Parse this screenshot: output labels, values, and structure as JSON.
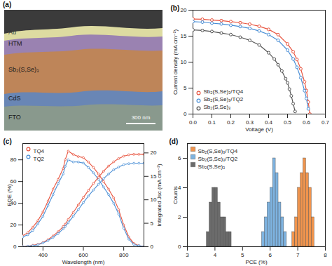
{
  "image_panel": {
    "title": "(a)",
    "layers": [
      "Au",
      "HTM",
      "Sb₂(S,Se)₃",
      "CdS",
      "FTO"
    ],
    "scale_bar": "300 nm"
  },
  "chart_data": [
    {
      "type": "line",
      "title": "(b)",
      "x_label": "Voltage (V)",
      "y_label": "Current density (mA cm⁻²)",
      "xlim": [
        0,
        0.7
      ],
      "xticks": [
        {
          "value": 0,
          "label": "0.0"
        },
        0.1,
        0.2,
        0.3,
        0.4,
        0.5,
        0.6,
        0.7
      ],
      "ylim": [
        0,
        20
      ],
      "yticks": [
        0,
        5,
        10,
        15,
        20
      ],
      "legend": "lower left",
      "marker": "circle",
      "series": [
        {
          "name": "Sb₂(S,Se)₃/TQ4",
          "color": "#e8543f",
          "x": [
            0,
            0.05,
            0.1,
            0.15,
            0.2,
            0.25,
            0.3,
            0.35,
            0.4,
            0.45,
            0.5,
            0.53,
            0.55,
            0.57,
            0.59,
            0.6,
            0.61,
            0.618
          ],
          "values": [
            18.3,
            18.25,
            18.1,
            18.0,
            17.8,
            17.6,
            17.3,
            16.9,
            16.3,
            15.3,
            13.5,
            12.0,
            10.5,
            8.7,
            6.2,
            4.5,
            2.3,
            0
          ]
        },
        {
          "name": "Sb₂(S,Se)₃/TQ2",
          "color": "#4a8fd6",
          "x": [
            0,
            0.05,
            0.1,
            0.15,
            0.2,
            0.25,
            0.3,
            0.35,
            0.4,
            0.45,
            0.5,
            0.53,
            0.55,
            0.57,
            0.59,
            0.6,
            0.61
          ],
          "values": [
            17.8,
            17.7,
            17.5,
            17.35,
            17.1,
            16.85,
            16.5,
            16.0,
            15.3,
            14.2,
            12.3,
            10.6,
            9.0,
            7.0,
            4.5,
            3.0,
            1.0
          ]
        },
        {
          "name": "Sb₂(S,Se)₃",
          "color": "#555555",
          "x": [
            0,
            0.05,
            0.1,
            0.15,
            0.2,
            0.25,
            0.3,
            0.35,
            0.4,
            0.43,
            0.45,
            0.47,
            0.49,
            0.5,
            0.51,
            0.52,
            0.53,
            0.54
          ],
          "values": [
            16.2,
            16.1,
            15.9,
            15.6,
            15.3,
            14.8,
            14.2,
            13.3,
            11.8,
            10.6,
            9.5,
            8.3,
            6.8,
            6.0,
            4.8,
            3.5,
            2.0,
            0.5
          ]
        }
      ]
    },
    {
      "type": "line",
      "title": "(c)",
      "x_label": "Wavelength (nm)",
      "y_label": "EQE (%)",
      "y2_label": "Integrated Jsc (mA cm⁻²)",
      "xlim": [
        300,
        900
      ],
      "xticks": [
        400,
        600,
        800
      ],
      "ylim": [
        0,
        95
      ],
      "yticks": [
        0,
        20,
        40,
        60,
        80
      ],
      "y2lim": [
        0,
        22
      ],
      "y2ticks": [
        0,
        5,
        10,
        15,
        20
      ],
      "legend": "upper left",
      "marker": "circle",
      "series": [
        {
          "name": "TQ4",
          "color": "#e8543f",
          "axis": "y",
          "x": [
            300,
            325,
            350,
            375,
            400,
            425,
            450,
            475,
            500,
            510,
            525,
            550,
            575,
            600,
            625,
            650,
            675,
            700,
            725,
            750,
            775,
            800,
            825,
            850,
            875,
            900
          ],
          "values": [
            10,
            13,
            18,
            24,
            32,
            42,
            53,
            62,
            72,
            80,
            88,
            85,
            83,
            82,
            78,
            73,
            67,
            60,
            53,
            45,
            34,
            20,
            9,
            3,
            1,
            0
          ]
        },
        {
          "name": "TQ2",
          "color": "#4a8fd6",
          "axis": "y",
          "x": [
            300,
            325,
            350,
            375,
            400,
            425,
            450,
            475,
            500,
            510,
            525,
            550,
            575,
            600,
            625,
            650,
            675,
            700,
            725,
            750,
            775,
            800,
            825,
            850,
            875,
            900
          ],
          "values": [
            9,
            11,
            15,
            21,
            28,
            38,
            48,
            58,
            67,
            74,
            80,
            78,
            78,
            77,
            73,
            68,
            62,
            55,
            48,
            40,
            30,
            17,
            7,
            2,
            1,
            0
          ]
        },
        {
          "name": "TQ4",
          "color": "#e8543f",
          "axis": "y2",
          "x": [
            300,
            325,
            350,
            375,
            400,
            425,
            450,
            475,
            500,
            510,
            525,
            550,
            575,
            600,
            625,
            650,
            675,
            700,
            725,
            750,
            775,
            800,
            825,
            850,
            875,
            900
          ],
          "values": [
            0,
            0.1,
            0.3,
            0.5,
            0.9,
            1.5,
            2.3,
            3.2,
            4.3,
            4.8,
            5.8,
            7.3,
            8.9,
            10.5,
            12.0,
            13.5,
            14.8,
            16.1,
            17.2,
            18.1,
            18.8,
            19.3,
            19.6,
            19.7,
            19.7,
            19.7
          ]
        },
        {
          "name": "TQ2",
          "color": "#4a8fd6",
          "axis": "y2",
          "x": [
            300,
            325,
            350,
            375,
            400,
            425,
            450,
            475,
            500,
            510,
            525,
            550,
            575,
            600,
            625,
            650,
            675,
            700,
            725,
            750,
            775,
            800,
            825,
            850,
            875,
            900
          ],
          "values": [
            0,
            0.1,
            0.2,
            0.4,
            0.8,
            1.3,
            2.0,
            2.8,
            3.8,
            4.3,
            5.1,
            6.5,
            7.9,
            9.4,
            10.8,
            12.1,
            13.3,
            14.5,
            15.5,
            16.4,
            17.0,
            17.5,
            17.7,
            17.8,
            17.8,
            17.8
          ]
        }
      ]
    },
    {
      "type": "histogram",
      "title": "(d)",
      "x_label": "PCE (%)",
      "y_label": "Counts",
      "xlim": [
        3,
        8
      ],
      "xticks": [
        3,
        4,
        5,
        6,
        7,
        8
      ],
      "ylim": [
        0,
        7
      ],
      "yticks": [
        0,
        2,
        4,
        6
      ],
      "legend": "upper left",
      "series": [
        {
          "name": "Sb₂(S,Se)₃/TQ4",
          "color": "#f0944d",
          "bins": [
            6.8,
            6.9,
            7.0,
            7.1,
            7.2,
            7.3,
            7.4,
            7.5,
            7.6
          ],
          "counts": [
            1,
            2,
            4,
            5,
            6,
            5,
            4,
            2
          ]
        },
        {
          "name": "Sb₂(S,Se)₃/TQ2",
          "color": "#7eb3e0",
          "bins": [
            5.7,
            5.8,
            5.9,
            6.0,
            6.1,
            6.2,
            6.3,
            6.4,
            6.5,
            6.6
          ],
          "counts": [
            1,
            2,
            3,
            4,
            6,
            5,
            3,
            2,
            1
          ]
        },
        {
          "name": "Sb₂(S,Se)₃",
          "color": "#6b6b6b",
          "bins": [
            3.7,
            3.8,
            3.9,
            4.0,
            4.1,
            4.2,
            4.3,
            4.4,
            4.5,
            4.6
          ],
          "counts": [
            1,
            3,
            4,
            4,
            3,
            2,
            2,
            1,
            1
          ]
        }
      ]
    }
  ]
}
